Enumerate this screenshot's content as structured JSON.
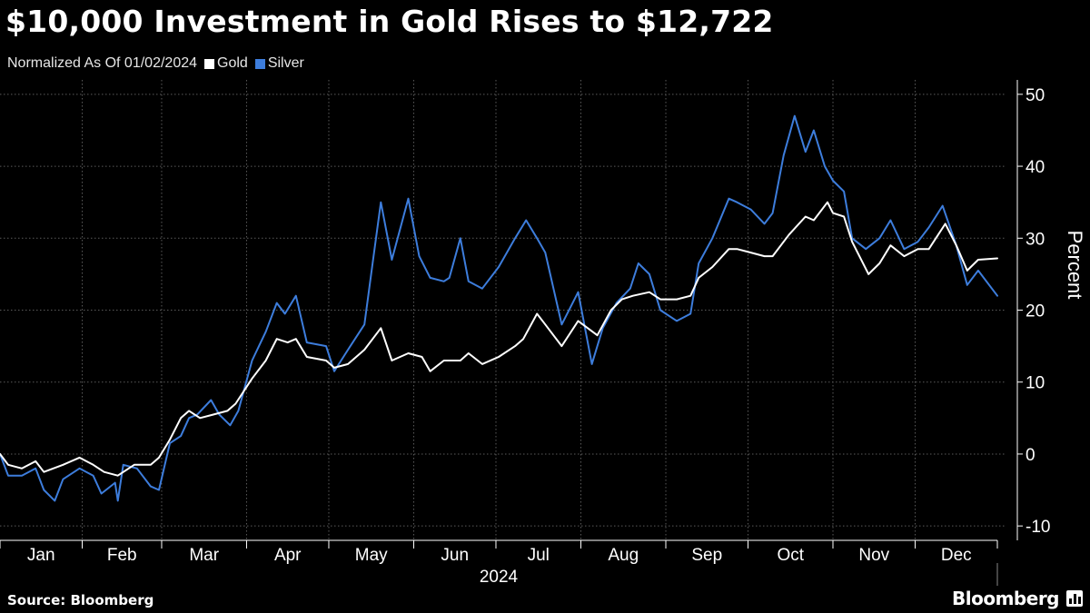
{
  "title": "$10,000 Investment in Gold Rises to $12,722",
  "subtitle": "Normalized As Of 01/02/2024",
  "source": "Source: Bloomberg",
  "brand": "Bloomberg",
  "colors": {
    "background": "#000000",
    "gold": "#ffffff",
    "silver": "#3d7ddc",
    "grid": "#5a5a5a",
    "axis": "#ffffff"
  },
  "chart_data": {
    "type": "line",
    "title": "$10,000 Investment in Gold Rises to $12,722",
    "subtitle": "Normalized As Of 01/02/2024",
    "xlabel": "2024",
    "ylabel": "Percent",
    "ylim": [
      -12,
      52
    ],
    "yticks": [
      50,
      40,
      30,
      20,
      10,
      0,
      -10
    ],
    "ytick_labels": [
      "50",
      "40",
      "30",
      "20",
      "10",
      "0",
      "-10"
    ],
    "xlim": [
      "2024-01-02",
      "2024-12-31"
    ],
    "months": [
      "Jan",
      "Feb",
      "Mar",
      "Apr",
      "May",
      "Jun",
      "Jul",
      "Aug",
      "Sep",
      "Oct",
      "Nov",
      "Dec"
    ],
    "year_label": "2024",
    "grid": true,
    "legend_position": "top-left",
    "series": [
      {
        "name": "Gold",
        "color": "#ffffff",
        "points": [
          [
            "2024-01-02",
            0
          ],
          [
            "2024-01-05",
            -1.5
          ],
          [
            "2024-01-10",
            -2.0
          ],
          [
            "2024-01-15",
            -1.0
          ],
          [
            "2024-01-18",
            -2.5
          ],
          [
            "2024-01-25",
            -1.5
          ],
          [
            "2024-01-31",
            -0.5
          ],
          [
            "2024-02-05",
            -1.5
          ],
          [
            "2024-02-09",
            -2.5
          ],
          [
            "2024-02-14",
            -3.0
          ],
          [
            "2024-02-20",
            -1.5
          ],
          [
            "2024-02-26",
            -1.5
          ],
          [
            "2024-02-29",
            -0.5
          ],
          [
            "2024-03-04",
            2.0
          ],
          [
            "2024-03-08",
            5.0
          ],
          [
            "2024-03-11",
            6.0
          ],
          [
            "2024-03-15",
            5.0
          ],
          [
            "2024-03-20",
            5.5
          ],
          [
            "2024-03-25",
            6.0
          ],
          [
            "2024-03-28",
            7.0
          ],
          [
            "2024-04-03",
            10.5
          ],
          [
            "2024-04-08",
            13.0
          ],
          [
            "2024-04-12",
            16.0
          ],
          [
            "2024-04-16",
            15.5
          ],
          [
            "2024-04-19",
            16.0
          ],
          [
            "2024-04-23",
            13.5
          ],
          [
            "2024-04-30",
            13.0
          ],
          [
            "2024-05-03",
            12.0
          ],
          [
            "2024-05-08",
            12.5
          ],
          [
            "2024-05-14",
            14.5
          ],
          [
            "2024-05-20",
            17.5
          ],
          [
            "2024-05-24",
            13.0
          ],
          [
            "2024-05-30",
            14.0
          ],
          [
            "2024-06-04",
            13.5
          ],
          [
            "2024-06-07",
            11.5
          ],
          [
            "2024-06-12",
            13.0
          ],
          [
            "2024-06-18",
            13.0
          ],
          [
            "2024-06-21",
            14.0
          ],
          [
            "2024-06-26",
            12.5
          ],
          [
            "2024-07-02",
            13.5
          ],
          [
            "2024-07-08",
            15.0
          ],
          [
            "2024-07-11",
            16.0
          ],
          [
            "2024-07-16",
            19.5
          ],
          [
            "2024-07-19",
            18.0
          ],
          [
            "2024-07-25",
            15.0
          ],
          [
            "2024-07-31",
            18.5
          ],
          [
            "2024-08-07",
            16.5
          ],
          [
            "2024-08-12",
            20.0
          ],
          [
            "2024-08-16",
            21.5
          ],
          [
            "2024-08-20",
            22.0
          ],
          [
            "2024-08-26",
            22.5
          ],
          [
            "2024-08-30",
            21.5
          ],
          [
            "2024-09-05",
            21.5
          ],
          [
            "2024-09-10",
            22.0
          ],
          [
            "2024-09-13",
            24.5
          ],
          [
            "2024-09-18",
            26.0
          ],
          [
            "2024-09-24",
            28.5
          ],
          [
            "2024-09-27",
            28.5
          ],
          [
            "2024-10-02",
            28.0
          ],
          [
            "2024-10-07",
            27.5
          ],
          [
            "2024-10-10",
            27.5
          ],
          [
            "2024-10-16",
            30.5
          ],
          [
            "2024-10-22",
            33.0
          ],
          [
            "2024-10-25",
            32.5
          ],
          [
            "2024-10-30",
            35.0
          ],
          [
            "2024-11-01",
            33.5
          ],
          [
            "2024-11-05",
            33.0
          ],
          [
            "2024-11-08",
            29.5
          ],
          [
            "2024-11-14",
            25.0
          ],
          [
            "2024-11-18",
            26.5
          ],
          [
            "2024-11-22",
            29.0
          ],
          [
            "2024-11-27",
            27.5
          ],
          [
            "2024-12-02",
            28.5
          ],
          [
            "2024-12-06",
            28.5
          ],
          [
            "2024-12-12",
            32.0
          ],
          [
            "2024-12-16",
            29.0
          ],
          [
            "2024-12-20",
            25.5
          ],
          [
            "2024-12-24",
            27.0
          ],
          [
            "2024-12-31",
            27.2
          ]
        ]
      },
      {
        "name": "Silver",
        "color": "#3d7ddc",
        "points": [
          [
            "2024-01-02",
            0
          ],
          [
            "2024-01-05",
            -3.0
          ],
          [
            "2024-01-10",
            -3.0
          ],
          [
            "2024-01-15",
            -2.0
          ],
          [
            "2024-01-18",
            -5.0
          ],
          [
            "2024-01-22",
            -6.5
          ],
          [
            "2024-01-25",
            -3.5
          ],
          [
            "2024-01-31",
            -2.0
          ],
          [
            "2024-02-05",
            -3.0
          ],
          [
            "2024-02-08",
            -5.5
          ],
          [
            "2024-02-13",
            -4.0
          ],
          [
            "2024-02-14",
            -6.5
          ],
          [
            "2024-02-16",
            -1.5
          ],
          [
            "2024-02-21",
            -2.0
          ],
          [
            "2024-02-26",
            -4.5
          ],
          [
            "2024-02-29",
            -5.0
          ],
          [
            "2024-03-04",
            1.5
          ],
          [
            "2024-03-08",
            2.5
          ],
          [
            "2024-03-11",
            5.0
          ],
          [
            "2024-03-14",
            5.5
          ],
          [
            "2024-03-19",
            7.5
          ],
          [
            "2024-03-22",
            5.5
          ],
          [
            "2024-03-26",
            4.0
          ],
          [
            "2024-03-29",
            6.0
          ],
          [
            "2024-04-03",
            13.0
          ],
          [
            "2024-04-08",
            17.0
          ],
          [
            "2024-04-12",
            21.0
          ],
          [
            "2024-04-15",
            19.5
          ],
          [
            "2024-04-19",
            22.0
          ],
          [
            "2024-04-23",
            15.5
          ],
          [
            "2024-04-30",
            15.0
          ],
          [
            "2024-05-03",
            11.5
          ],
          [
            "2024-05-08",
            14.5
          ],
          [
            "2024-05-14",
            18.0
          ],
          [
            "2024-05-17",
            26.5
          ],
          [
            "2024-05-20",
            35.0
          ],
          [
            "2024-05-24",
            27.0
          ],
          [
            "2024-05-30",
            35.5
          ],
          [
            "2024-06-03",
            27.5
          ],
          [
            "2024-06-07",
            24.5
          ],
          [
            "2024-06-12",
            24.0
          ],
          [
            "2024-06-14",
            24.5
          ],
          [
            "2024-06-18",
            30.0
          ],
          [
            "2024-06-21",
            24.0
          ],
          [
            "2024-06-26",
            23.0
          ],
          [
            "2024-07-02",
            26.0
          ],
          [
            "2024-07-08",
            30.0
          ],
          [
            "2024-07-12",
            32.5
          ],
          [
            "2024-07-16",
            30.0
          ],
          [
            "2024-07-19",
            28.0
          ],
          [
            "2024-07-25",
            18.0
          ],
          [
            "2024-07-31",
            22.5
          ],
          [
            "2024-08-05",
            12.5
          ],
          [
            "2024-08-09",
            17.5
          ],
          [
            "2024-08-14",
            21.0
          ],
          [
            "2024-08-19",
            23.0
          ],
          [
            "2024-08-22",
            26.5
          ],
          [
            "2024-08-26",
            25.0
          ],
          [
            "2024-08-30",
            20.0
          ],
          [
            "2024-09-05",
            18.5
          ],
          [
            "2024-09-10",
            19.5
          ],
          [
            "2024-09-13",
            26.5
          ],
          [
            "2024-09-18",
            30.0
          ],
          [
            "2024-09-24",
            35.5
          ],
          [
            "2024-09-27",
            35.0
          ],
          [
            "2024-10-02",
            34.0
          ],
          [
            "2024-10-07",
            32.0
          ],
          [
            "2024-10-10",
            33.5
          ],
          [
            "2024-10-14",
            41.5
          ],
          [
            "2024-10-18",
            47.0
          ],
          [
            "2024-10-22",
            42.0
          ],
          [
            "2024-10-25",
            45.0
          ],
          [
            "2024-10-29",
            40.0
          ],
          [
            "2024-11-01",
            38.0
          ],
          [
            "2024-11-05",
            36.5
          ],
          [
            "2024-11-08",
            30.0
          ],
          [
            "2024-11-13",
            28.5
          ],
          [
            "2024-11-18",
            30.0
          ],
          [
            "2024-11-22",
            32.5
          ],
          [
            "2024-11-27",
            28.5
          ],
          [
            "2024-12-02",
            29.5
          ],
          [
            "2024-12-06",
            31.5
          ],
          [
            "2024-12-11",
            34.5
          ],
          [
            "2024-12-16",
            29.0
          ],
          [
            "2024-12-20",
            23.5
          ],
          [
            "2024-12-24",
            25.5
          ],
          [
            "2024-12-31",
            22.0
          ]
        ]
      }
    ]
  }
}
